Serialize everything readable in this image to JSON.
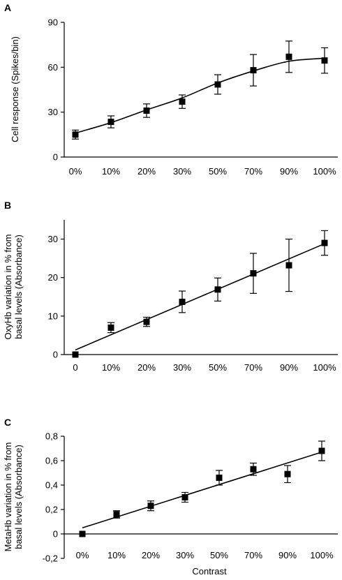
{
  "figure": {
    "shared_xlabel": "Contrast"
  },
  "chart_data": [
    {
      "panel": "A",
      "type": "scatter",
      "ylabel": "Cell response (Spikes/bin)",
      "ylabel_lines": [
        "Cell response (Spikes/bin)"
      ],
      "xlabel": "",
      "categories": [
        "0%",
        "10%",
        "20%",
        "30%",
        "50%",
        "70%",
        "90%",
        "100%"
      ],
      "series": [
        {
          "values": [
            15,
            23.5,
            31,
            37,
            48.5,
            58,
            67,
            64.5
          ],
          "error": [
            3,
            4,
            4.5,
            4.5,
            6.5,
            10.5,
            10.5,
            8.5
          ]
        }
      ],
      "fit": {
        "type": "sigmoid",
        "values": [
          16,
          23,
          31.5,
          39.5,
          49.5,
          57.5,
          64,
          66
        ]
      },
      "ylim": [
        0,
        90
      ],
      "yticks": [
        0,
        30,
        60,
        90
      ],
      "ytick_labels": [
        "0",
        "30",
        "60",
        "90"
      ],
      "grid": false,
      "legend": "none"
    },
    {
      "panel": "B",
      "type": "scatter",
      "ylabel": "OxyHb variation in % from basal levels (Absorbance)",
      "ylabel_lines": [
        "OxyHb variation in % from",
        "basal levels (Absorbance)"
      ],
      "xlabel": "",
      "categories": [
        "0",
        "10%",
        "20%",
        "30%",
        "50%",
        "70%",
        "90%",
        "100%"
      ],
      "series": [
        {
          "values": [
            0,
            7,
            8.5,
            13.7,
            16.9,
            21.1,
            23.2,
            29
          ],
          "error": [
            0,
            1.3,
            1.2,
            2.8,
            3,
            5.2,
            6.8,
            3.2
          ]
        }
      ],
      "fit": {
        "type": "linear",
        "values": [
          1.2,
          5.2,
          9.2,
          13.2,
          17.2,
          21.1,
          25,
          28.8
        ]
      },
      "ylim": [
        0,
        35
      ],
      "yticks": [
        0,
        10,
        20,
        30
      ],
      "ytick_labels": [
        "0",
        "10",
        "20",
        "30"
      ],
      "grid": false,
      "legend": "none"
    },
    {
      "panel": "C",
      "type": "scatter",
      "ylabel": "MetaHb variation in % from basal levels (Absorbance)",
      "ylabel_lines": [
        "MetaHb variation in % from",
        "basal levels (Absorbance)"
      ],
      "xlabel": "Contrast",
      "categories": [
        "0%",
        "10%",
        "20%",
        "30%",
        "50%",
        "70%",
        "90%",
        "100%"
      ],
      "series": [
        {
          "values": [
            0,
            0.16,
            0.23,
            0.3,
            0.46,
            0.53,
            0.49,
            0.68
          ],
          "error": [
            0,
            0.03,
            0.04,
            0.04,
            0.06,
            0.05,
            0.07,
            0.08
          ]
        }
      ],
      "fit": {
        "type": "linear",
        "values": [
          0.05,
          0.14,
          0.23,
          0.32,
          0.41,
          0.5,
          0.58,
          0.67
        ]
      },
      "ylim": [
        -0.2,
        0.8
      ],
      "yticks": [
        -0.2,
        0,
        0.2,
        0.4,
        0.6,
        0.8
      ],
      "ytick_labels": [
        "-0,2",
        "0",
        "0,2",
        "0,4",
        "0,6",
        "0,8"
      ],
      "grid": false,
      "legend": "none"
    }
  ]
}
